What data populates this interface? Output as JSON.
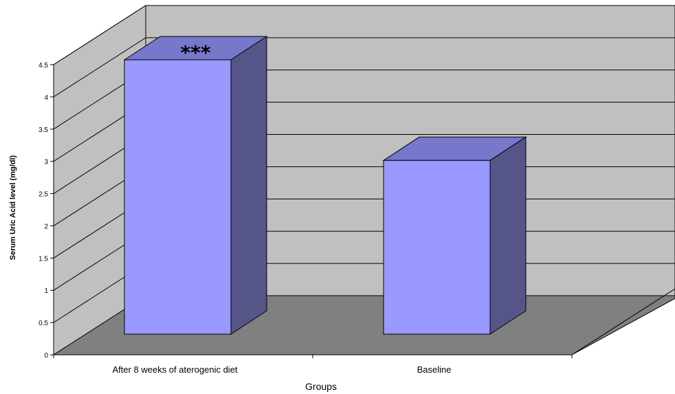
{
  "chart_data": {
    "type": "bar",
    "categories": [
      "After 8 weeks of aterogenic diet",
      "Baseline"
    ],
    "values": [
      4.5,
      2.85
    ],
    "annotations": [
      "***",
      ""
    ],
    "xlabel": "Groups",
    "ylabel": "Serum Uric Acid level (mg/dl)",
    "ylim": [
      0,
      4.5
    ],
    "yticks": [
      "0",
      "0.5",
      "1",
      "1.5",
      "2",
      "2.5",
      "3",
      "3.5",
      "4",
      "4.5"
    ],
    "grid": true,
    "colors": {
      "bar_front": "#9999ff",
      "bar_top": "#7777cc",
      "bar_side": "#555588",
      "back_wall": "#c0c0c0",
      "floor": "#808080",
      "gridline": "#000000"
    }
  }
}
